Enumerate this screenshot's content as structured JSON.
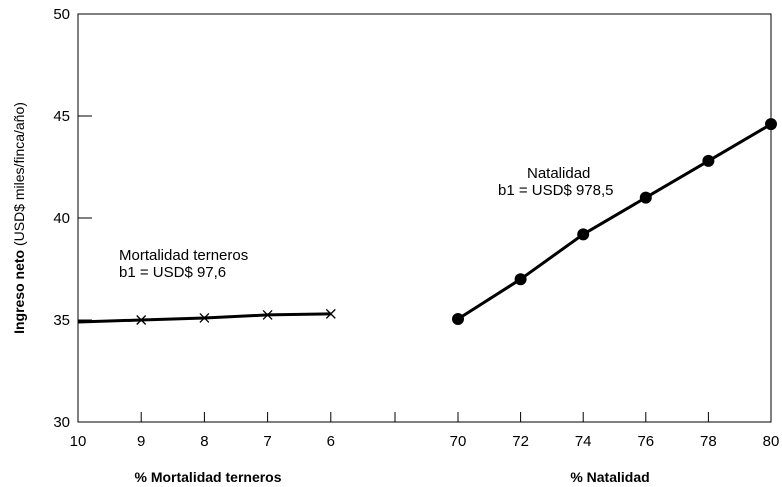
{
  "chart_data": {
    "type": "line",
    "ylabel_bold": "Ingreso neto",
    "ylabel_rest": " (USD$ miles/finca/año)",
    "ylim": [
      30,
      50
    ],
    "yticks": [
      30,
      35,
      40,
      45,
      50
    ],
    "grid": false,
    "panels": [
      {
        "xlabel": "% Mortalidad terneros",
        "xticks": [
          "10",
          "9",
          "8",
          "7",
          "6"
        ],
        "annotation": [
          "Mortalidad terneros",
          "b1 = USD$ 97,6"
        ],
        "marker": "x",
        "line_start": {
          "x": 10,
          "y": 34.9
        },
        "points": [
          {
            "x": 9,
            "y": 35.0
          },
          {
            "x": 8,
            "y": 35.1
          },
          {
            "x": 7,
            "y": 35.25
          },
          {
            "x": 6,
            "y": 35.3
          }
        ]
      },
      {
        "xlabel": "% Natalidad",
        "xticks": [
          "70",
          "72",
          "74",
          "76",
          "78",
          "80"
        ],
        "annotation": [
          "Natalidad",
          "b1 = USD$ 978,5"
        ],
        "marker": "circle",
        "points": [
          {
            "x": 70,
            "y": 35.05
          },
          {
            "x": 72,
            "y": 37.0
          },
          {
            "x": 74,
            "y": 39.2
          },
          {
            "x": 76,
            "y": 41.0
          },
          {
            "x": 78,
            "y": 42.8
          },
          {
            "x": 80,
            "y": 44.6
          }
        ]
      }
    ]
  }
}
